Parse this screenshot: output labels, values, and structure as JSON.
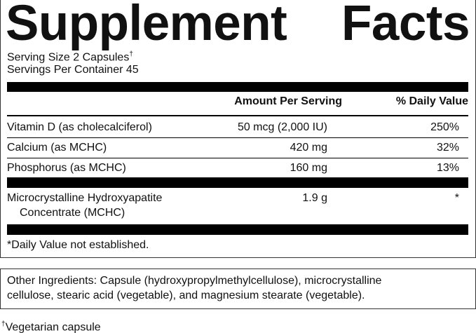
{
  "title_left": "Supplement",
  "title_right": "Facts",
  "serving_size": "Serving Size 2 Capsules",
  "serving_size_mark": "†",
  "servings_per_container": "Servings Per Container 45",
  "table": {
    "header": [
      "Amount Per Serving",
      "% Daily Value"
    ],
    "rows": [
      {
        "name": [
          "Vitamin D (as cholecalciferol)"
        ],
        "amount": "50 mcg (2,000 IU)",
        "daily_value": "250%"
      },
      {
        "name": [
          "Calcium (as MCHC)"
        ],
        "amount": "420 mg",
        "daily_value": "32%"
      },
      {
        "name": [
          "Phosphorus (as MCHC)"
        ],
        "amount": "160 mg",
        "daily_value": "13%"
      },
      {
        "name": [
          "Microcrystalline Hydroxyapatite",
          "Concentrate (MCHC)"
        ],
        "amount": "1.9 g",
        "daily_value": "*"
      }
    ]
  },
  "footnote": "*Daily Value not established.",
  "other_ingredients": [
    "Other Ingredients: Capsule (hydroxypropylmethylcellulose), microcrystalline",
    "cellulose, stearic acid (vegetable), and magnesium stearate (vegetable)."
  ],
  "vegetarian_mark": "†",
  "vegetarian_note": "Vegetarian capsule"
}
